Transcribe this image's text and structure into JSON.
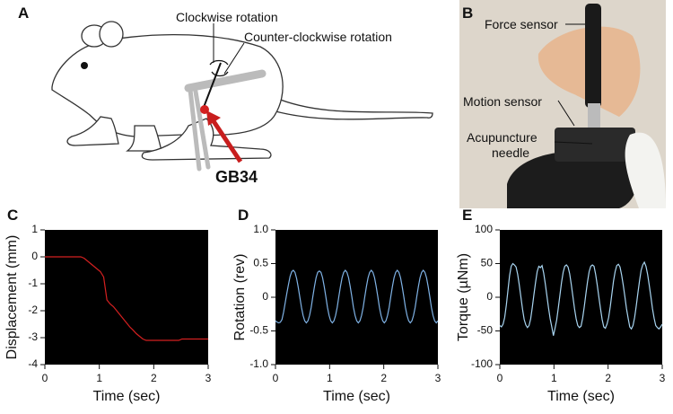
{
  "figure": {
    "panel_a": {
      "label": "A",
      "clockwise": "Clockwise rotation",
      "counter_clockwise": "Counter-clockwise rotation",
      "point": "GB34"
    },
    "panel_b": {
      "label": "B",
      "force_sensor": "Force sensor",
      "motion_sensor": "Motion sensor",
      "needle": [
        "Acupuncture",
        "needle"
      ]
    }
  },
  "chart_data": [
    {
      "type": "line",
      "panel_label": "C",
      "x_label": "Time (sec)",
      "y_label": "Displacement (mm)",
      "color": "#d42020",
      "background": "#000000",
      "xlim": [
        0,
        3
      ],
      "xticks": [
        0,
        1,
        2,
        3
      ],
      "ylim": [
        -4,
        1
      ],
      "yticks": [
        1,
        0,
        -1,
        -2,
        -3,
        -4
      ],
      "x": [
        0,
        0.06,
        0.12,
        0.18,
        0.24,
        0.3,
        0.36,
        0.42,
        0.48,
        0.54,
        0.6,
        0.66,
        0.72,
        0.78,
        0.84,
        0.9,
        0.96,
        1.02,
        1.08,
        1.14,
        1.2,
        1.26,
        1.32,
        1.38,
        1.44,
        1.5,
        1.56,
        1.62,
        1.68,
        1.74,
        1.8,
        1.86,
        1.92,
        1.98,
        2.04,
        2.1,
        2.16,
        2.22,
        2.28,
        2.34,
        2.4,
        2.46,
        2.52,
        2.58,
        2.64,
        2.7,
        2.76,
        2.82,
        2.88,
        2.94,
        3.0
      ],
      "values": [
        0,
        0,
        0,
        0,
        0,
        0,
        0,
        0,
        0,
        0,
        0,
        0,
        -0.05,
        -0.15,
        -0.25,
        -0.35,
        -0.45,
        -0.55,
        -0.75,
        -1.6,
        -1.75,
        -1.85,
        -2.0,
        -2.15,
        -2.3,
        -2.45,
        -2.6,
        -2.72,
        -2.85,
        -2.95,
        -3.05,
        -3.1,
        -3.1,
        -3.1,
        -3.1,
        -3.1,
        -3.1,
        -3.1,
        -3.1,
        -3.1,
        -3.1,
        -3.1,
        -3.05,
        -3.05,
        -3.05,
        -3.05,
        -3.05,
        -3.05,
        -3.05,
        -3.05,
        -3.05
      ]
    },
    {
      "type": "line",
      "panel_label": "D",
      "x_label": "Time (sec)",
      "y_label": "Rotation (rev)",
      "color": "#7fb2e5",
      "background": "#000000",
      "xlim": [
        0,
        3
      ],
      "xticks": [
        0,
        1,
        2,
        3
      ],
      "ylim": [
        -1,
        1
      ],
      "yticks": [
        {
          "value": 1,
          "label": "1.0"
        },
        0.5,
        0,
        -0.5,
        {
          "value": -1,
          "label": "-1.0"
        }
      ],
      "x": [
        0,
        0.03,
        0.06,
        0.09,
        0.12,
        0.15,
        0.18,
        0.21,
        0.24,
        0.27,
        0.3,
        0.33,
        0.36,
        0.39,
        0.42,
        0.45,
        0.48,
        0.51,
        0.54,
        0.57,
        0.6,
        0.63,
        0.66,
        0.69,
        0.72,
        0.75,
        0.78,
        0.81,
        0.84,
        0.87,
        0.9,
        0.93,
        0.96,
        0.99,
        1.02,
        1.05,
        1.08,
        1.11,
        1.14,
        1.17,
        1.2,
        1.23,
        1.26,
        1.29,
        1.32,
        1.35,
        1.38,
        1.41,
        1.44,
        1.47,
        1.5,
        1.53,
        1.56,
        1.59,
        1.62,
        1.65,
        1.68,
        1.71,
        1.74,
        1.77,
        1.8,
        1.83,
        1.86,
        1.89,
        1.92,
        1.95,
        1.98,
        2.01,
        2.04,
        2.07,
        2.1,
        2.13,
        2.16,
        2.19,
        2.22,
        2.25,
        2.28,
        2.31,
        2.34,
        2.37,
        2.4,
        2.43,
        2.46,
        2.49,
        2.52,
        2.55,
        2.58,
        2.61,
        2.64,
        2.67,
        2.7,
        2.73,
        2.76,
        2.79,
        2.82,
        2.85,
        2.88,
        2.91,
        2.94,
        2.97,
        3.0
      ],
      "values": [
        -0.35,
        -0.37,
        -0.38,
        -0.37,
        -0.33,
        -0.22,
        -0.08,
        0.06,
        0.19,
        0.31,
        0.38,
        0.4,
        0.37,
        0.28,
        0.15,
        0.0,
        -0.15,
        -0.27,
        -0.35,
        -0.38,
        -0.35,
        -0.27,
        -0.15,
        0.01,
        0.16,
        0.29,
        0.37,
        0.39,
        0.37,
        0.29,
        0.16,
        0.01,
        -0.15,
        -0.27,
        -0.35,
        -0.38,
        -0.35,
        -0.27,
        -0.15,
        0.01,
        0.16,
        0.29,
        0.37,
        0.4,
        0.37,
        0.29,
        0.16,
        0.01,
        -0.15,
        -0.27,
        -0.35,
        -0.38,
        -0.35,
        -0.27,
        -0.15,
        0.01,
        0.16,
        0.29,
        0.37,
        0.4,
        0.37,
        0.29,
        0.16,
        0.01,
        -0.15,
        -0.27,
        -0.35,
        -0.38,
        -0.35,
        -0.27,
        -0.15,
        0.01,
        0.16,
        0.29,
        0.37,
        0.4,
        0.37,
        0.29,
        0.16,
        0.01,
        -0.15,
        -0.27,
        -0.35,
        -0.38,
        -0.35,
        -0.27,
        -0.15,
        0.01,
        0.16,
        0.29,
        0.37,
        0.4,
        0.37,
        0.29,
        0.16,
        0.01,
        -0.15,
        -0.27,
        -0.35,
        -0.38,
        -0.35
      ]
    },
    {
      "type": "line",
      "panel_label": "E",
      "x_label": "Time (sec)",
      "y_label": "Torque (µNm)",
      "color": "#a8d4f0",
      "background": "#000000",
      "xlim": [
        0,
        3
      ],
      "xticks": [
        0,
        1,
        2,
        3
      ],
      "ylim": [
        -100,
        100
      ],
      "yticks": [
        100,
        50,
        0,
        -50,
        -100
      ],
      "x": [
        0,
        0.03,
        0.06,
        0.09,
        0.12,
        0.15,
        0.18,
        0.21,
        0.24,
        0.27,
        0.3,
        0.33,
        0.36,
        0.39,
        0.42,
        0.45,
        0.48,
        0.51,
        0.54,
        0.57,
        0.6,
        0.63,
        0.66,
        0.69,
        0.72,
        0.75,
        0.78,
        0.81,
        0.84,
        0.87,
        0.9,
        0.93,
        0.96,
        0.99,
        1.02,
        1.05,
        1.08,
        1.11,
        1.14,
        1.17,
        1.2,
        1.23,
        1.26,
        1.29,
        1.32,
        1.35,
        1.38,
        1.41,
        1.44,
        1.47,
        1.5,
        1.53,
        1.56,
        1.59,
        1.62,
        1.65,
        1.68,
        1.71,
        1.74,
        1.77,
        1.8,
        1.83,
        1.86,
        1.89,
        1.92,
        1.95,
        1.98,
        2.01,
        2.04,
        2.07,
        2.1,
        2.13,
        2.16,
        2.19,
        2.22,
        2.25,
        2.28,
        2.31,
        2.34,
        2.37,
        2.4,
        2.43,
        2.46,
        2.49,
        2.52,
        2.55,
        2.58,
        2.61,
        2.64,
        2.67,
        2.7,
        2.73,
        2.76,
        2.79,
        2.82,
        2.85,
        2.88,
        2.91,
        2.94,
        2.97,
        3.0
      ],
      "values": [
        -42,
        -44,
        -40,
        -30,
        -12,
        10,
        32,
        46,
        50,
        48,
        45,
        34,
        18,
        0,
        -18,
        -33,
        -41,
        -45,
        -42,
        -32,
        -15,
        4,
        22,
        38,
        46,
        44,
        47,
        36,
        20,
        2,
        -16,
        -32,
        -44,
        -57,
        -46,
        -34,
        -16,
        3,
        22,
        37,
        46,
        48,
        45,
        35,
        19,
        1,
        -17,
        -32,
        -42,
        -45,
        -43,
        -31,
        -14,
        5,
        23,
        38,
        46,
        48,
        46,
        34,
        18,
        0,
        -17,
        -33,
        -44,
        -46,
        -40,
        -30,
        -14,
        5,
        24,
        38,
        47,
        49,
        45,
        33,
        18,
        1,
        -17,
        -31,
        -44,
        -47,
        -42,
        -30,
        -13,
        6,
        24,
        40,
        48,
        52,
        46,
        34,
        18,
        1,
        -17,
        -31,
        -42,
        -45,
        -47,
        -44,
        -40
      ]
    }
  ]
}
